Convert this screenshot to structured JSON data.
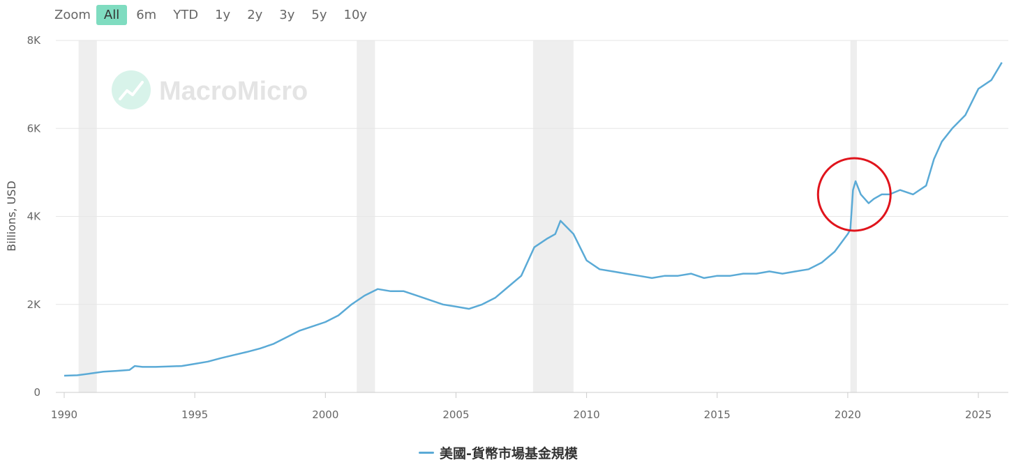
{
  "zoom": {
    "label": "Zoom",
    "options": [
      "All",
      "6m",
      "YTD",
      "1y",
      "2y",
      "3y",
      "5y",
      "10y"
    ],
    "selected": "All"
  },
  "watermark": "MacroMicro",
  "colors": {
    "series": "#5aaad6",
    "recession": "#eeeeee",
    "grid": "#e6e6e6",
    "circle": "#e0141c",
    "zoom_active": "#7fdcc0"
  },
  "chart_data": {
    "type": "line",
    "title": "",
    "xlabel": "",
    "ylabel": "Billions, USD",
    "xlim": [
      1990,
      2026.3
    ],
    "ylim": [
      0,
      8000
    ],
    "x_ticks": [
      1990,
      1995,
      2000,
      2005,
      2010,
      2015,
      2020,
      2025
    ],
    "y_ticks": [
      0,
      2000,
      4000,
      6000,
      8000
    ],
    "y_tick_labels": [
      "0",
      "2K",
      "4K",
      "6K",
      "8K"
    ],
    "grid": true,
    "legend": "bottom-center",
    "recessions": [
      [
        1990.55,
        1991.25
      ],
      [
        2001.2,
        2001.9
      ],
      [
        2007.95,
        2009.5
      ],
      [
        2020.1,
        2020.35
      ]
    ],
    "annotation": {
      "type": "circle",
      "center": [
        2020.25,
        4500
      ]
    },
    "series": [
      {
        "name": "美國-貨幣市場基金規模",
        "x": [
          1990.0,
          1990.5,
          1991.0,
          1991.5,
          1992.0,
          1992.5,
          1992.7,
          1993.0,
          1993.5,
          1994.0,
          1994.5,
          1995.0,
          1995.5,
          1996.0,
          1996.5,
          1997.0,
          1997.5,
          1998.0,
          1998.5,
          1999.0,
          1999.5,
          2000.0,
          2000.5,
          2001.0,
          2001.5,
          2002.0,
          2002.5,
          2003.0,
          2003.5,
          2004.0,
          2004.5,
          2005.0,
          2005.5,
          2006.0,
          2006.5,
          2007.0,
          2007.5,
          2008.0,
          2008.5,
          2008.8,
          2009.0,
          2009.5,
          2010.0,
          2010.5,
          2011.0,
          2011.5,
          2012.0,
          2012.5,
          2013.0,
          2013.5,
          2014.0,
          2014.5,
          2015.0,
          2015.5,
          2016.0,
          2016.5,
          2017.0,
          2017.5,
          2018.0,
          2018.5,
          2019.0,
          2019.5,
          2020.0,
          2020.1,
          2020.2,
          2020.3,
          2020.5,
          2020.8,
          2021.0,
          2021.3,
          2021.6,
          2022.0,
          2022.5,
          2023.0,
          2023.3,
          2023.6,
          2024.0,
          2024.5,
          2025.0,
          2025.5,
          2025.9
        ],
        "values": [
          380,
          390,
          430,
          470,
          490,
          510,
          600,
          580,
          580,
          590,
          600,
          650,
          700,
          780,
          850,
          920,
          1000,
          1100,
          1250,
          1400,
          1500,
          1600,
          1750,
          2000,
          2200,
          2350,
          2300,
          2300,
          2200,
          2100,
          2000,
          1950,
          1900,
          2000,
          2150,
          2400,
          2650,
          3300,
          3500,
          3600,
          3900,
          3600,
          3000,
          2800,
          2750,
          2700,
          2650,
          2600,
          2650,
          2650,
          2700,
          2600,
          2650,
          2650,
          2700,
          2700,
          2750,
          2700,
          2750,
          2800,
          2950,
          3200,
          3600,
          3700,
          4600,
          4800,
          4500,
          4300,
          4400,
          4500,
          4500,
          4600,
          4500,
          4700,
          5300,
          5700,
          6000,
          6300,
          6900,
          7100,
          7500
        ]
      }
    ]
  }
}
